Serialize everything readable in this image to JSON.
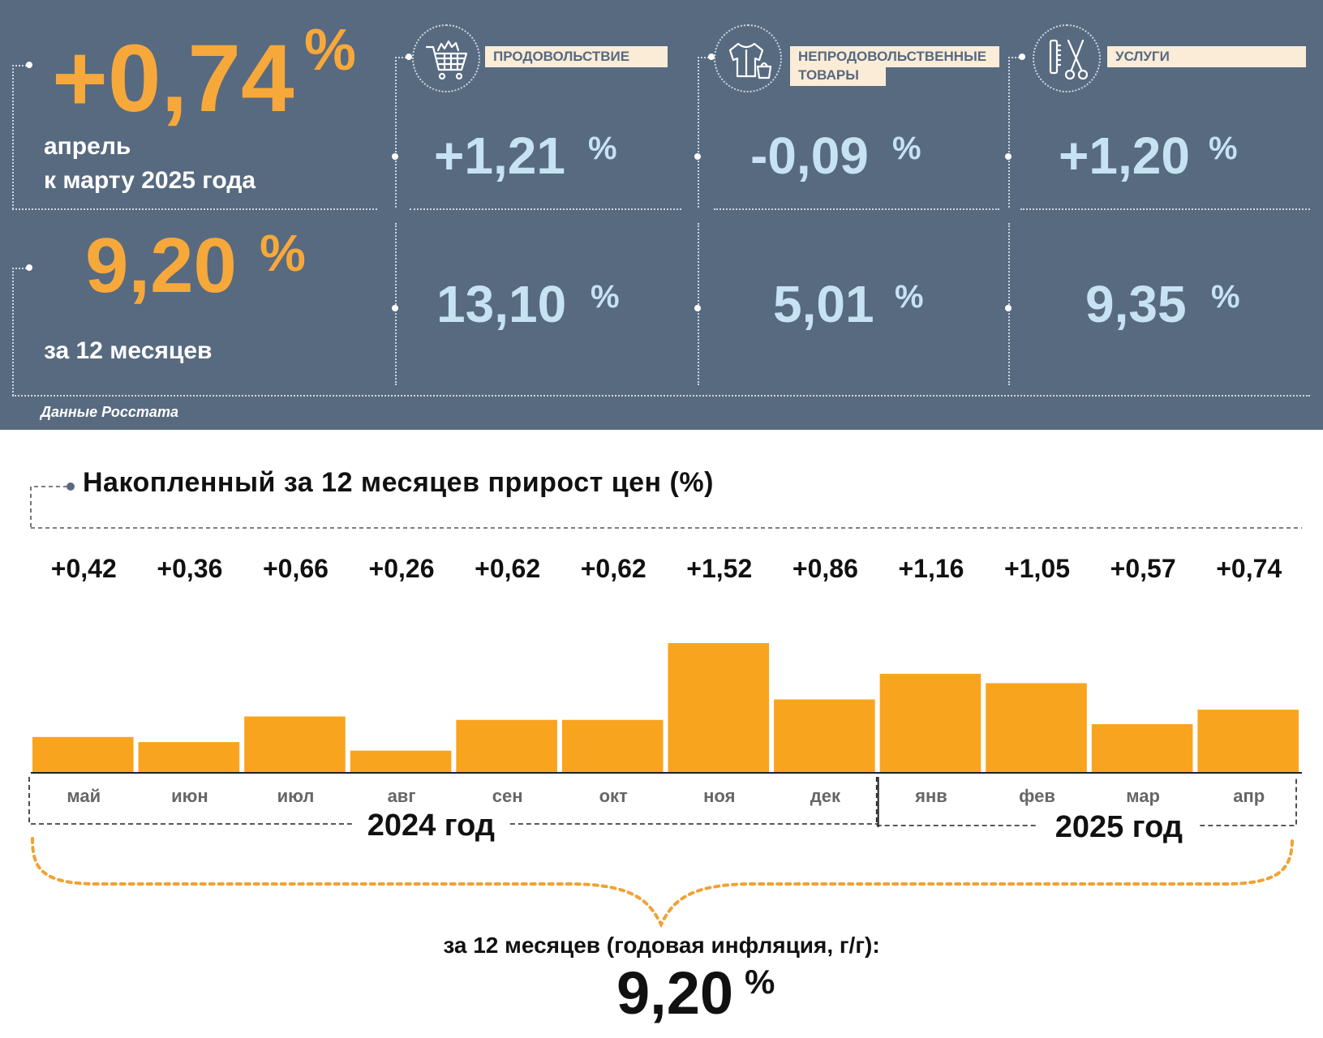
{
  "summary": {
    "monthly_value": "+0,74",
    "monthly_unit": "%",
    "monthly_caption_line1": "апрель",
    "monthly_caption_line2": "к марту 2025 года",
    "annual_value": "9,20",
    "annual_unit": "%",
    "annual_caption": "за 12 месяцев",
    "source": "Данные Росстата"
  },
  "categories": [
    {
      "label_line1": "ПРОДОВОЛЬСТВИЕ",
      "label_line2": "",
      "icon": "shopping-cart-icon",
      "monthly": "+1,21",
      "annual": "13,10",
      "unit": "%"
    },
    {
      "label_line1": "НЕПРОДОВОЛЬСТВЕННЫЕ",
      "label_line2": "ТОВАРЫ",
      "icon": "clothes-bag-icon",
      "monthly": "-0,09",
      "annual": "5,01",
      "unit": "%"
    },
    {
      "label_line1": "УСЛУГИ",
      "label_line2": "",
      "icon": "comb-scissors-icon",
      "monthly": "+1,20",
      "annual": "9,35",
      "unit": "%"
    }
  ],
  "colors": {
    "panel": "#576a80",
    "orange": "#f7a83b",
    "light_blue": "#c6e2f3",
    "label_bg": "#fbecd8",
    "bar": "#f9a41f"
  },
  "chart_data": {
    "type": "bar",
    "title": "Накопленный за 12 месяцев прирост цен (%)",
    "categories": [
      "май",
      "июн",
      "июл",
      "авг",
      "сен",
      "окт",
      "ноя",
      "дек",
      "янв",
      "фев",
      "мар",
      "апр"
    ],
    "values": [
      0.42,
      0.36,
      0.66,
      0.26,
      0.62,
      0.62,
      1.52,
      0.86,
      1.16,
      1.05,
      0.57,
      0.74
    ],
    "value_labels": [
      "+0,42",
      "+0,36",
      "+0,66",
      "+0,26",
      "+0,62",
      "+0,62",
      "+1,52",
      "+0,86",
      "+1,16",
      "+1,05",
      "+0,57",
      "+0,74"
    ],
    "year_groups": [
      {
        "label": "2024 год",
        "count": 8
      },
      {
        "label": "2025 год",
        "count": 4
      }
    ],
    "grid": false
  },
  "annual": {
    "label": "за 12 месяцев (годовая инфляция, г/г):",
    "value": "9,20",
    "unit": "%"
  }
}
